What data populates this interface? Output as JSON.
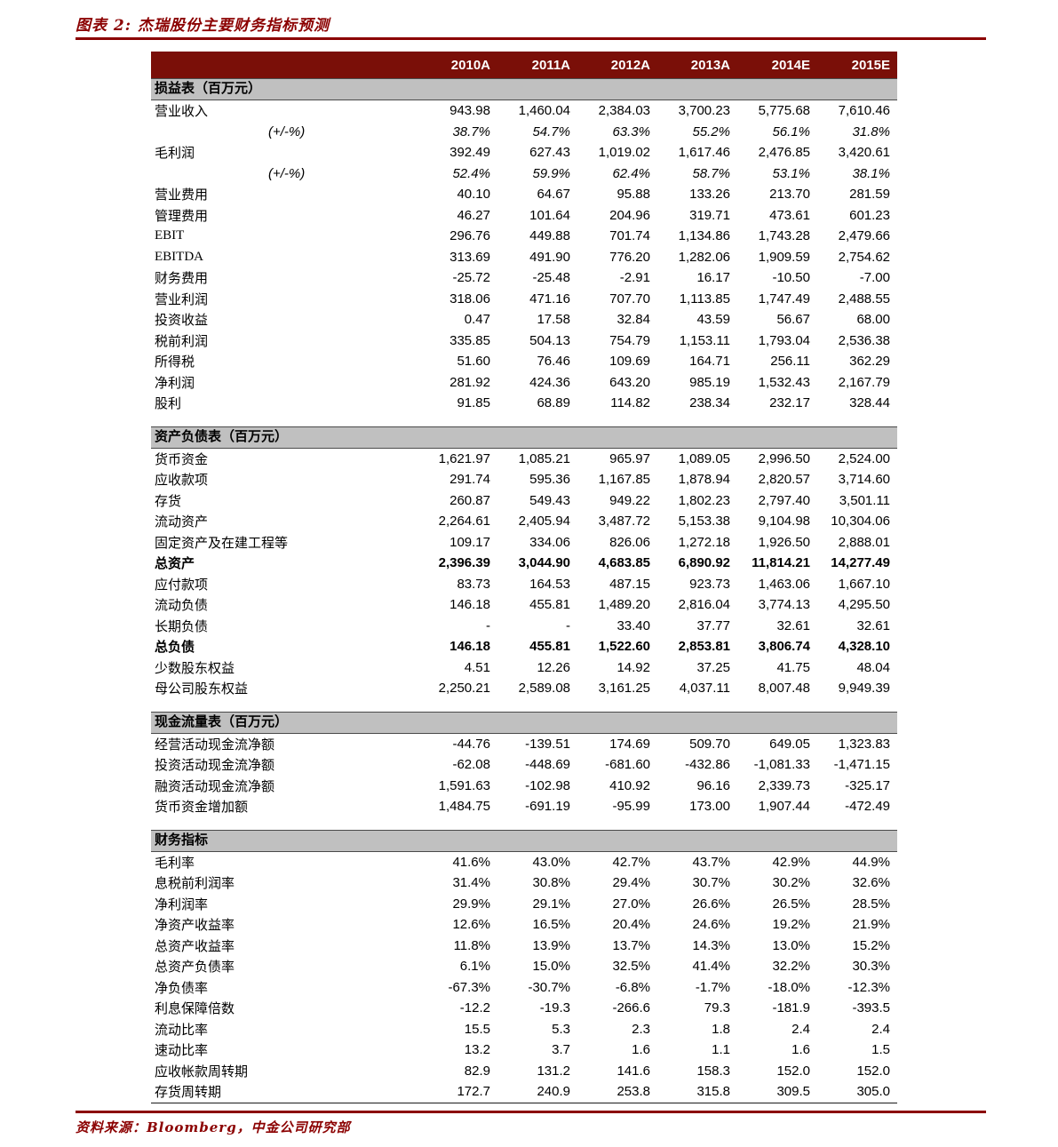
{
  "title": "图表 2: 杰瑞股份主要财务指标预测",
  "footer": {
    "source": "资料来源：Bloomberg，中金公司研究部"
  },
  "colors": {
    "accent": "#8b0000",
    "header_bg": "#7a0f08",
    "section_bg": "#c0c0c0"
  },
  "columns": [
    "2010A",
    "2011A",
    "2012A",
    "2013A",
    "2014E",
    "2015E"
  ],
  "sections": [
    {
      "title": "损益表（百万元）",
      "rows": [
        {
          "label": "营业收入",
          "values": [
            "943.98",
            "1,460.04",
            "2,384.03",
            "3,700.23",
            "5,775.68",
            "7,610.46"
          ]
        },
        {
          "label": "(+/-%)",
          "indent": true,
          "italic": true,
          "values": [
            "38.7%",
            "54.7%",
            "63.3%",
            "55.2%",
            "56.1%",
            "31.8%"
          ]
        },
        {
          "label": "毛利润",
          "values": [
            "392.49",
            "627.43",
            "1,019.02",
            "1,617.46",
            "2,476.85",
            "3,420.61"
          ]
        },
        {
          "label": "(+/-%)",
          "indent": true,
          "italic": true,
          "values": [
            "52.4%",
            "59.9%",
            "62.4%",
            "58.7%",
            "53.1%",
            "38.1%"
          ]
        },
        {
          "label": "营业费用",
          "values": [
            "40.10",
            "64.67",
            "95.88",
            "133.26",
            "213.70",
            "281.59"
          ]
        },
        {
          "label": "管理费用",
          "values": [
            "46.27",
            "101.64",
            "204.96",
            "319.71",
            "473.61",
            "601.23"
          ]
        },
        {
          "label": "EBIT",
          "values": [
            "296.76",
            "449.88",
            "701.74",
            "1,134.86",
            "1,743.28",
            "2,479.66"
          ]
        },
        {
          "label": "EBITDA",
          "values": [
            "313.69",
            "491.90",
            "776.20",
            "1,282.06",
            "1,909.59",
            "2,754.62"
          ]
        },
        {
          "label": "财务费用",
          "values": [
            "-25.72",
            "-25.48",
            "-2.91",
            "16.17",
            "-10.50",
            "-7.00"
          ]
        },
        {
          "label": "营业利润",
          "values": [
            "318.06",
            "471.16",
            "707.70",
            "1,113.85",
            "1,747.49",
            "2,488.55"
          ]
        },
        {
          "label": "投资收益",
          "values": [
            "0.47",
            "17.58",
            "32.84",
            "43.59",
            "56.67",
            "68.00"
          ]
        },
        {
          "label": "税前利润",
          "values": [
            "335.85",
            "504.13",
            "754.79",
            "1,153.11",
            "1,793.04",
            "2,536.38"
          ]
        },
        {
          "label": "所得税",
          "values": [
            "51.60",
            "76.46",
            "109.69",
            "164.71",
            "256.11",
            "362.29"
          ]
        },
        {
          "label": "净利润",
          "values": [
            "281.92",
            "424.36",
            "643.20",
            "985.19",
            "1,532.43",
            "2,167.79"
          ]
        },
        {
          "label": "股利",
          "values": [
            "91.85",
            "68.89",
            "114.82",
            "238.34",
            "232.17",
            "328.44"
          ]
        }
      ]
    },
    {
      "title": "资产负债表（百万元）",
      "rows": [
        {
          "label": "货币资金",
          "values": [
            "1,621.97",
            "1,085.21",
            "965.97",
            "1,089.05",
            "2,996.50",
            "2,524.00"
          ]
        },
        {
          "label": "应收款项",
          "values": [
            "291.74",
            "595.36",
            "1,167.85",
            "1,878.94",
            "2,820.57",
            "3,714.60"
          ]
        },
        {
          "label": "存货",
          "values": [
            "260.87",
            "549.43",
            "949.22",
            "1,802.23",
            "2,797.40",
            "3,501.11"
          ]
        },
        {
          "label": "流动资产",
          "values": [
            "2,264.61",
            "2,405.94",
            "3,487.72",
            "5,153.38",
            "9,104.98",
            "10,304.06"
          ]
        },
        {
          "label": "固定资产及在建工程等",
          "values": [
            "109.17",
            "334.06",
            "826.06",
            "1,272.18",
            "1,926.50",
            "2,888.01"
          ]
        },
        {
          "label": "总资产",
          "bold": true,
          "values": [
            "2,396.39",
            "3,044.90",
            "4,683.85",
            "6,890.92",
            "11,814.21",
            "14,277.49"
          ]
        },
        {
          "label": "应付款项",
          "values": [
            "83.73",
            "164.53",
            "487.15",
            "923.73",
            "1,463.06",
            "1,667.10"
          ]
        },
        {
          "label": "流动负债",
          "values": [
            "146.18",
            "455.81",
            "1,489.20",
            "2,816.04",
            "3,774.13",
            "4,295.50"
          ]
        },
        {
          "label": "长期负债",
          "values": [
            "-",
            "-",
            "33.40",
            "37.77",
            "32.61",
            "32.61"
          ]
        },
        {
          "label": "总负债",
          "bold": true,
          "values": [
            "146.18",
            "455.81",
            "1,522.60",
            "2,853.81",
            "3,806.74",
            "4,328.10"
          ]
        },
        {
          "label": "少数股东权益",
          "values": [
            "4.51",
            "12.26",
            "14.92",
            "37.25",
            "41.75",
            "48.04"
          ]
        },
        {
          "label": "母公司股东权益",
          "values": [
            "2,250.21",
            "2,589.08",
            "3,161.25",
            "4,037.11",
            "8,007.48",
            "9,949.39"
          ]
        }
      ]
    },
    {
      "title": "现金流量表（百万元）",
      "rows": [
        {
          "label": "经营活动现金流净额",
          "values": [
            "-44.76",
            "-139.51",
            "174.69",
            "509.70",
            "649.05",
            "1,323.83"
          ]
        },
        {
          "label": "投资活动现金流净额",
          "values": [
            "-62.08",
            "-448.69",
            "-681.60",
            "-432.86",
            "-1,081.33",
            "-1,471.15"
          ]
        },
        {
          "label": "融资活动现金流净额",
          "values": [
            "1,591.63",
            "-102.98",
            "410.92",
            "96.16",
            "2,339.73",
            "-325.17"
          ]
        },
        {
          "label": "货币资金增加额",
          "values": [
            "1,484.75",
            "-691.19",
            "-95.99",
            "173.00",
            "1,907.44",
            "-472.49"
          ]
        }
      ]
    },
    {
      "title": "财务指标",
      "rows": [
        {
          "label": "毛利率",
          "values": [
            "41.6%",
            "43.0%",
            "42.7%",
            "43.7%",
            "42.9%",
            "44.9%"
          ]
        },
        {
          "label": "息税前利润率",
          "values": [
            "31.4%",
            "30.8%",
            "29.4%",
            "30.7%",
            "30.2%",
            "32.6%"
          ]
        },
        {
          "label": "净利润率",
          "values": [
            "29.9%",
            "29.1%",
            "27.0%",
            "26.6%",
            "26.5%",
            "28.5%"
          ]
        },
        {
          "label": "净资产收益率",
          "values": [
            "12.6%",
            "16.5%",
            "20.4%",
            "24.6%",
            "19.2%",
            "21.9%"
          ]
        },
        {
          "label": "总资产收益率",
          "values": [
            "11.8%",
            "13.9%",
            "13.7%",
            "14.3%",
            "13.0%",
            "15.2%"
          ]
        },
        {
          "label": "总资产负债率",
          "values": [
            "6.1%",
            "15.0%",
            "32.5%",
            "41.4%",
            "32.2%",
            "30.3%"
          ]
        },
        {
          "label": "净负债率",
          "values": [
            "-67.3%",
            "-30.7%",
            "-6.8%",
            "-1.7%",
            "-18.0%",
            "-12.3%"
          ]
        },
        {
          "label": "利息保障倍数",
          "values": [
            "-12.2",
            "-19.3",
            "-266.6",
            "79.3",
            "-181.9",
            "-393.5"
          ]
        },
        {
          "label": "流动比率",
          "values": [
            "15.5",
            "5.3",
            "2.3",
            "1.8",
            "2.4",
            "2.4"
          ]
        },
        {
          "label": "速动比率",
          "values": [
            "13.2",
            "3.7",
            "1.6",
            "1.1",
            "1.6",
            "1.5"
          ]
        },
        {
          "label": "应收帐款周转期",
          "values": [
            "82.9",
            "131.2",
            "141.6",
            "158.3",
            "152.0",
            "152.0"
          ]
        },
        {
          "label": "存货周转期",
          "values": [
            "172.7",
            "240.9",
            "253.8",
            "315.8",
            "309.5",
            "305.0"
          ]
        }
      ]
    }
  ]
}
